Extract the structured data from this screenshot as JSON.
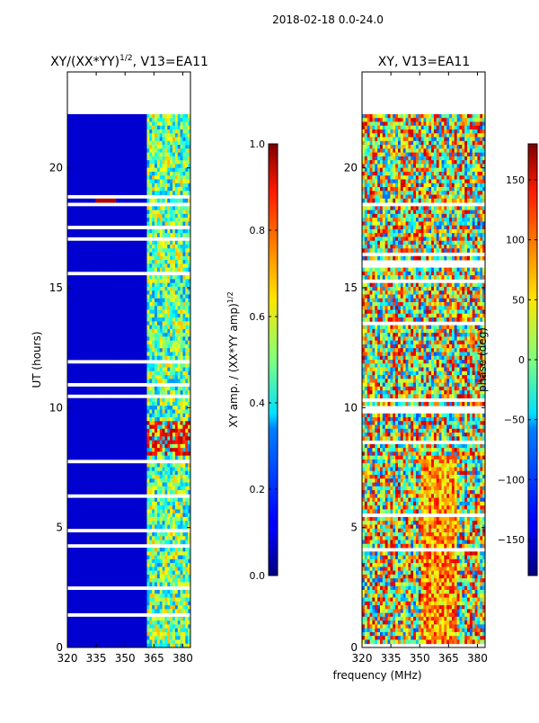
{
  "figure_title": "2018-02-18 0.0-24.0",
  "chart_data": [
    {
      "type": "heatmap",
      "title": "XY/(XX*YY)",
      "title_exponent": "1/2",
      "title_suffix": ", V13=EA11",
      "xlabel": "",
      "ylabel": "UT (hours)",
      "xlim": [
        320,
        384
      ],
      "ylim": [
        0,
        24
      ],
      "xticks": [
        320,
        335,
        350,
        365,
        380
      ],
      "yticks": [
        0,
        5,
        10,
        15,
        20
      ],
      "colorbar": {
        "label": "XY amp. / (XX*YY amp)",
        "label_exponent": "1/2",
        "range": [
          0.0,
          1.0
        ],
        "ticks": [
          "0.0",
          "0.2",
          "0.4",
          "0.6",
          "0.8",
          "1.0"
        ],
        "colormap": "jet"
      }
    },
    {
      "type": "heatmap",
      "title": "XY, V13=EA11",
      "xlabel": "frequency (MHz)",
      "ylabel": "",
      "xlim": [
        320,
        384
      ],
      "ylim": [
        0,
        24
      ],
      "xticks": [
        320,
        335,
        350,
        365,
        380
      ],
      "yticks": [
        0,
        5,
        10,
        15,
        20
      ],
      "colorbar": {
        "label": "phase (deg)",
        "range": [
          -180,
          180
        ],
        "ticks": [
          "−150",
          "−100",
          "−50",
          "0",
          "50",
          "100",
          "150"
        ],
        "colormap": "jet"
      }
    }
  ]
}
